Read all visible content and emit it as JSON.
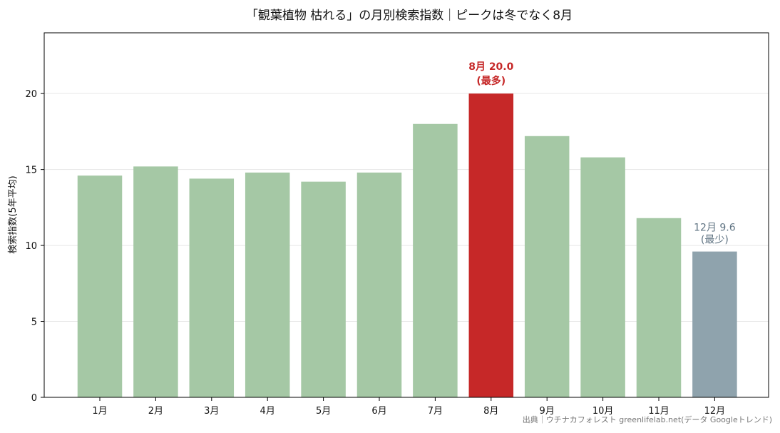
{
  "chart_data": {
    "type": "bar",
    "title": "「観葉植物 枯れる」の月別検索指数｜ピークは冬でなく8月",
    "xlabel": "",
    "ylabel": "検索指数(5年平均)",
    "categories": [
      "1月",
      "2月",
      "3月",
      "4月",
      "5月",
      "6月",
      "7月",
      "8月",
      "9月",
      "10月",
      "11月",
      "12月"
    ],
    "values": [
      14.6,
      15.2,
      14.4,
      14.8,
      14.2,
      14.8,
      18.0,
      20.0,
      17.2,
      15.8,
      11.8,
      9.6
    ],
    "ylim": [
      0,
      24
    ],
    "yticks": [
      "0",
      "5",
      "10",
      "15",
      "20"
    ],
    "grid": "horizontal",
    "colors": {
      "default": "#a5c8a5",
      "max": "#c62828",
      "min": "#8fa3ad"
    },
    "annotations": {
      "max": {
        "label": "8月 20.0",
        "sub": "(最多)",
        "index": 7
      },
      "min": {
        "label": "12月 9.6",
        "sub": "(最少)",
        "index": 11
      }
    },
    "source": "出典｜ウチナカフォレスト greenlifelab.net(データ Googleトレンド)"
  }
}
